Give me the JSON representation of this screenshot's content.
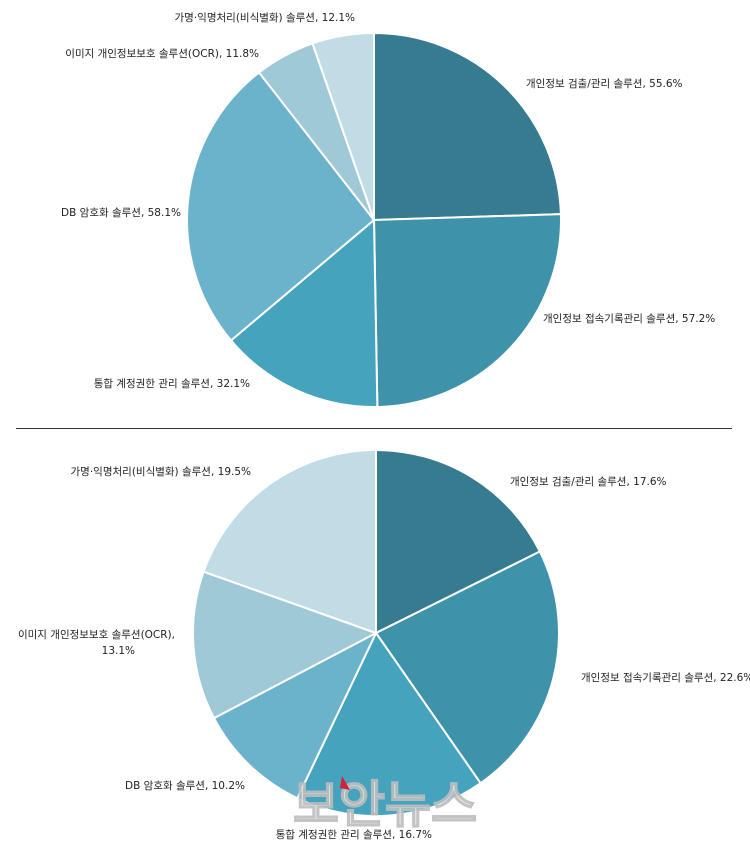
{
  "palette": [
    "#367b8f",
    "#3e93ab",
    "#45a3be",
    "#6bb3cb",
    "#a0c9d8",
    "#c2dce6"
  ],
  "watermark": {
    "text": "보안뉴스"
  },
  "chart_data": [
    {
      "type": "pie",
      "slices": [
        {
          "label": "개인정보 검출/관리 솔루션, 55.6%",
          "value": 55.6,
          "color": "#367b8f"
        },
        {
          "label": "개인정보 접속기록관리 솔루션, 57.2%",
          "value": 57.2,
          "color": "#3e93ab"
        },
        {
          "label": "통합 계정권한 관리 솔루션, 32.1%",
          "value": 32.1,
          "color": "#45a3be"
        },
        {
          "label": "DB 암호화 솔루션, 58.1%",
          "value": 58.1,
          "color": "#6bb3cb"
        },
        {
          "label": "이미지 개인정보보호 솔루션(OCR), 11.8%",
          "value": 11.8,
          "color": "#a0c9d8"
        },
        {
          "label": "가명·익명처리(비식별화) 솔루션, 12.1%",
          "value": 12.1,
          "color": "#c2dce6"
        }
      ]
    },
    {
      "type": "pie",
      "slices": [
        {
          "label": "개인정보 검출/관리 솔루션, 17.6%",
          "value": 17.6,
          "color": "#367b8f"
        },
        {
          "label": "개인정보 접속기록관리 솔루션, 22.6%",
          "value": 22.6,
          "color": "#3e93ab"
        },
        {
          "label": "통합 계정권한 관리 솔루션, 16.7%",
          "value": 16.7,
          "color": "#45a3be"
        },
        {
          "label": "DB 암호화 솔루션, 10.2%",
          "value": 10.2,
          "color": "#6bb3cb"
        },
        {
          "label": [
            "이미지 개인정보보호 솔루션(OCR),",
            "13.1%"
          ],
          "value": 13.1,
          "color": "#a0c9d8"
        },
        {
          "label": "가명·익명처리(비식별화) 솔루션, 19.5%",
          "value": 19.5,
          "color": "#c2dce6"
        }
      ]
    }
  ]
}
